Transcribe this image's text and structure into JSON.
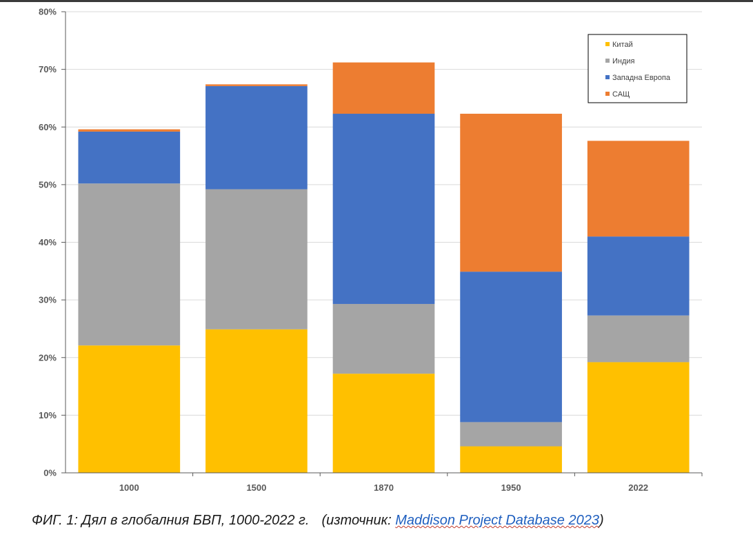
{
  "caption": {
    "main": "ФИГ. 1: Дял в глобалния БВП, 1000-2022 г.",
    "source_prefix": "(източник: ",
    "source_link": "Maddison Project Database 2023",
    "source_suffix": ")"
  },
  "colors": {
    "china": "#FFC000",
    "india": "#A5A5A5",
    "western_europe": "#4472C4",
    "usa": "#ED7D31",
    "gridline": "#D9D9D9",
    "axis": "#595959"
  },
  "chart_data": {
    "type": "bar",
    "stacked": true,
    "title": "",
    "xlabel": "",
    "ylabel": "",
    "categories": [
      "1000",
      "1500",
      "1870",
      "1950",
      "2022"
    ],
    "series": [
      {
        "name": "Китай",
        "color": "#FFC000",
        "values": [
          22.1,
          24.9,
          17.2,
          4.6,
          19.2
        ]
      },
      {
        "name": "Индия",
        "color": "#A5A5A5",
        "values": [
          28.1,
          24.3,
          12.1,
          4.2,
          8.1
        ]
      },
      {
        "name": "Западна Европа",
        "color": "#4472C4",
        "values": [
          9.0,
          17.9,
          33.0,
          26.1,
          13.7
        ]
      },
      {
        "name": "САЩ",
        "color": "#ED7D31",
        "values": [
          0.4,
          0.3,
          8.9,
          27.4,
          16.6
        ]
      }
    ],
    "ylim": [
      0,
      80
    ],
    "yticks": [
      "0%",
      "10%",
      "20%",
      "30%",
      "40%",
      "50%",
      "60%",
      "70%",
      "80%"
    ],
    "grid": true,
    "legend_position": "top-right"
  }
}
